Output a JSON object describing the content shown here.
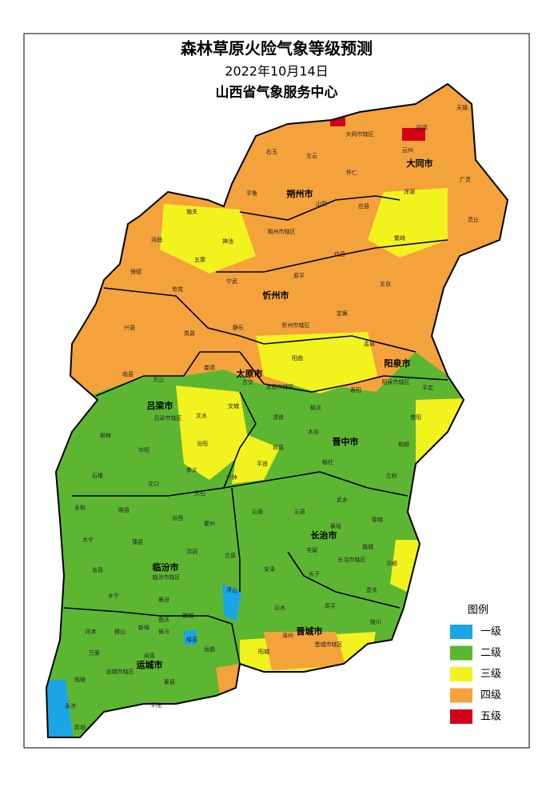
{
  "header": {
    "title": "森林草原火险气象等级预测",
    "date": "2022年10月14日",
    "org": "山西省气象服务中心"
  },
  "map": {
    "cities": [
      "大同市",
      "朔州市",
      "忻州市",
      "阳泉市",
      "太原市",
      "吕梁市",
      "晋中市",
      "长治市",
      "临汾市",
      "晋城市",
      "运城市"
    ],
    "counties": [
      "天镇",
      "阳高",
      "大同市辖区",
      "左云",
      "右玉",
      "云州",
      "广灵",
      "浑源",
      "灵丘",
      "怀仁",
      "山阴",
      "应县",
      "平鲁",
      "朔州市辖区",
      "偏关",
      "河曲",
      "神池",
      "五寨",
      "代县",
      "繁峙",
      "宁武",
      "原平",
      "五台",
      "保德",
      "岢岚",
      "静乐",
      "定襄",
      "忻州市辖区",
      "兴县",
      "岚县",
      "盂县",
      "阳曲",
      "临县",
      "方山",
      "娄烦",
      "古交",
      "太原市辖区",
      "寿阳",
      "阳泉市辖区",
      "平定",
      "吕梁市辖区",
      "交城",
      "文水",
      "清徐",
      "榆次",
      "昔阳",
      "柳林",
      "中阳",
      "汾阳",
      "祁县",
      "太谷",
      "和顺",
      "石楼",
      "交口",
      "孝义",
      "平遥",
      "介休",
      "榆社",
      "左权",
      "灵石",
      "永和",
      "隰县",
      "汾西",
      "霍州",
      "沁源",
      "沁县",
      "武乡",
      "黎城",
      "大宁",
      "蒲县",
      "洪洞",
      "古县",
      "安泽",
      "襄垣",
      "屯留",
      "潞城",
      "吉县",
      "临汾市辖区",
      "长子",
      "长治市辖区",
      "平顺",
      "乡宁",
      "襄汾",
      "浮山",
      "壶关",
      "沁水",
      "高平",
      "陵川",
      "河津",
      "稷山",
      "新绛",
      "曲沃",
      "翼城",
      "侯马",
      "绛县",
      "万荣",
      "闻喜",
      "垣曲",
      "阳城",
      "晋城市辖区",
      "泽州",
      "临猗",
      "运城市辖区",
      "夏县",
      "永济",
      "平陆",
      "芮城"
    ]
  },
  "legend": {
    "title": "图例",
    "items": [
      {
        "label": "一级",
        "color": "#1ba5e6"
      },
      {
        "label": "二级",
        "color": "#5db632"
      },
      {
        "label": "三级",
        "color": "#f2f21e"
      },
      {
        "label": "四级",
        "color": "#f4a23c"
      },
      {
        "label": "五级",
        "color": "#d30019"
      }
    ]
  }
}
